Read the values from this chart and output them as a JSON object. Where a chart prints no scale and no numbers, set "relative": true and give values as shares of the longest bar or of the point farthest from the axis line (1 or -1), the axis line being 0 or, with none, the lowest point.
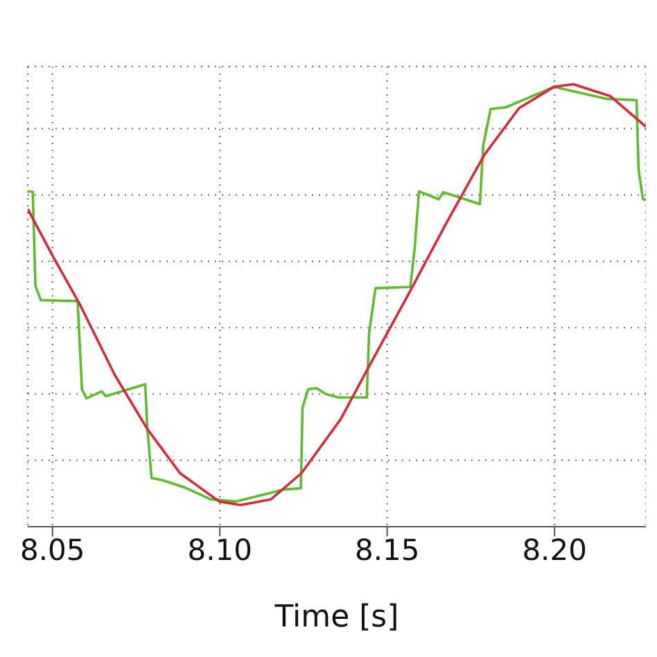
{
  "chart_data": {
    "type": "line",
    "relative": true,
    "xlabel": "Time [s]",
    "xlim": [
      8.0426,
      8.2273
    ],
    "xticks": [
      {
        "value": 8.05,
        "label": "8.05"
      },
      {
        "value": 8.1,
        "label": "8.10"
      },
      {
        "value": 8.15,
        "label": "8.15"
      },
      {
        "value": 8.2,
        "label": "8.20"
      }
    ],
    "grid": true,
    "legend": false,
    "marker": "none",
    "line_style": "solid",
    "series": [
      {
        "color": "#5dbb2e",
        "x": [
          8.0426,
          8.0441,
          8.0449,
          8.0465,
          8.0575,
          8.0588,
          8.0601,
          8.0647,
          8.0659,
          8.0777,
          8.0783,
          8.0796,
          8.0829,
          8.0894,
          8.0972,
          8.1049,
          8.1192,
          8.1242,
          8.1247,
          8.1264,
          8.129,
          8.1316,
          8.1355,
          8.1439,
          8.1446,
          8.1465,
          8.1569,
          8.1582,
          8.1595,
          8.1654,
          8.1667,
          8.1777,
          8.1787,
          8.1809,
          8.1855,
          8.1998,
          8.2154,
          8.2245,
          8.2251,
          8.2264,
          8.2273
        ],
        "values": [
          0.758,
          0.757,
          0.544,
          0.512,
          0.51,
          0.311,
          0.29,
          0.306,
          0.295,
          0.322,
          0.226,
          0.11,
          0.105,
          0.089,
          0.062,
          0.057,
          0.084,
          0.087,
          0.269,
          0.311,
          0.313,
          0.3,
          0.292,
          0.292,
          0.438,
          0.539,
          0.542,
          0.629,
          0.758,
          0.74,
          0.756,
          0.729,
          0.862,
          0.944,
          0.948,
          0.994,
          0.967,
          0.964,
          0.808,
          0.74,
          0.738
        ]
      },
      {
        "color": "#d42a3a",
        "x": [
          8.0426,
          8.0504,
          8.0582,
          8.0686,
          8.0783,
          8.0881,
          8.0998,
          8.1062,
          8.1153,
          8.1244,
          8.1361,
          8.1439,
          8.1569,
          8.1673,
          8.179,
          8.1894,
          8.1998,
          8.2056,
          8.2167,
          8.2273
        ],
        "values": [
          0.718,
          0.607,
          0.502,
          0.343,
          0.221,
          0.121,
          0.057,
          0.049,
          0.062,
          0.121,
          0.243,
          0.353,
          0.533,
          0.681,
          0.84,
          0.946,
          0.994,
          1.0,
          0.973,
          0.904
        ]
      }
    ]
  }
}
